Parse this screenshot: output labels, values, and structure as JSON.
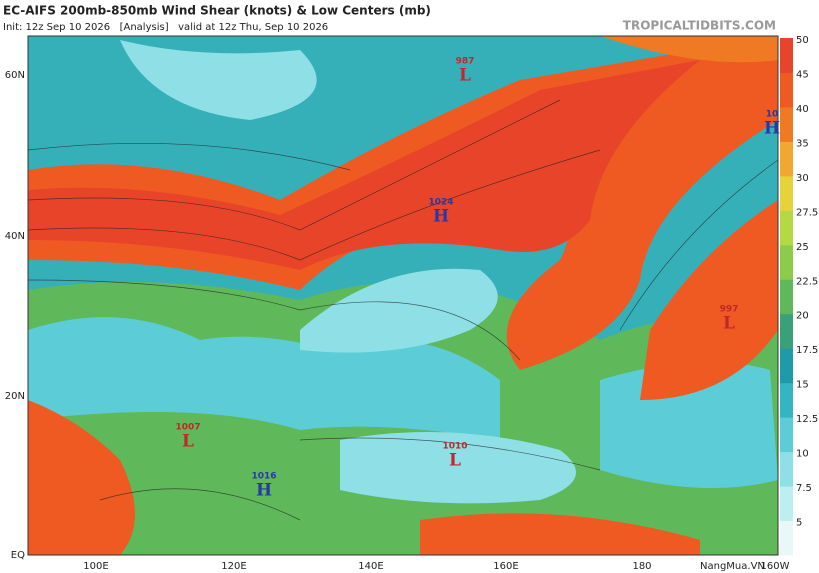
{
  "header": {
    "title": "EC-AIFS 200mb-850mb Wind Shear (knots) & Low Centers (mb)",
    "subtitle": "Init: 12z Sep 10 2026   [Analysis]   valid at 12z Thu, Sep 10 2026",
    "site": "TROPICALTIDBITS.COM"
  },
  "map": {
    "lat_labels": [
      "60N",
      "40N",
      "20N",
      "EQ"
    ],
    "lon_labels": [
      "100E",
      "120E",
      "140E",
      "160E",
      "180",
      "160W"
    ],
    "centers": [
      {
        "value": "987",
        "symbol": "L"
      },
      {
        "value": "1024",
        "symbol": "H"
      },
      {
        "value": "997",
        "symbol": "L"
      },
      {
        "value": "1007",
        "symbol": "L"
      },
      {
        "value": "1010",
        "symbol": "L"
      },
      {
        "value": "1016",
        "symbol": "H"
      },
      {
        "value": "10",
        "symbol": "H"
      }
    ]
  },
  "colorbar": {
    "ticks": [
      5,
      7.5,
      10,
      12.5,
      15,
      17.5,
      20,
      22.5,
      25,
      27.5,
      30,
      35,
      40,
      45,
      50
    ],
    "colors": [
      "#e8f8f8",
      "#bdeff0",
      "#8ee0e6",
      "#5ccdd6",
      "#33b5c2",
      "#1f9aa8",
      "#3aa07a",
      "#5fb85a",
      "#8ccc4a",
      "#b5d944",
      "#e6d23c",
      "#f0a830",
      "#f07a24",
      "#ee5a22",
      "#e8442a"
    ]
  },
  "watermark": "NangMua.VN"
}
